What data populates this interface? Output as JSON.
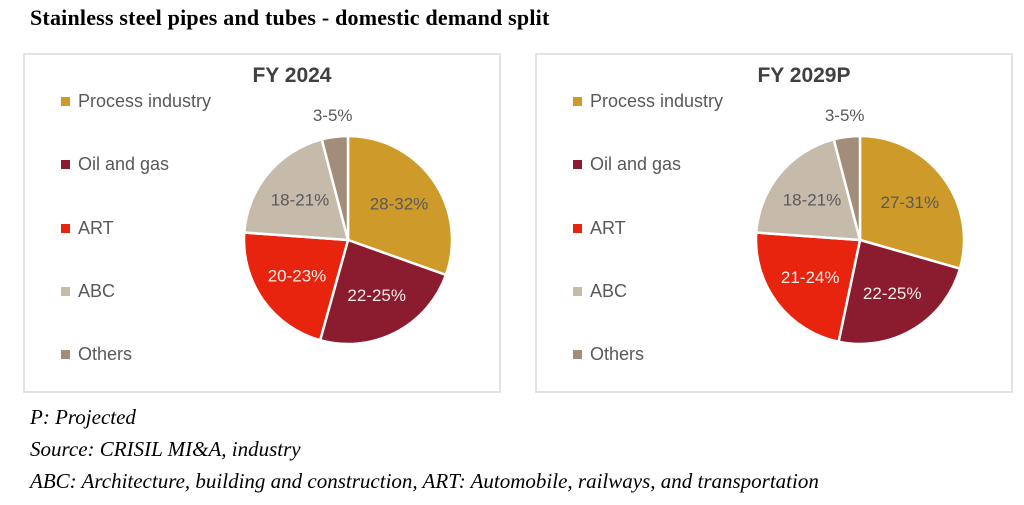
{
  "page": {
    "title": "Stainless steel pipes and tubes - domestic demand split",
    "footnotes": [
      "P: Projected",
      "Source: CRISIL MI&A, industry",
      "ABC: Architecture, building and construction, ART: Automobile, railways, and transportation"
    ]
  },
  "colors": {
    "process_industry": "#CE9B2A",
    "oil_and_gas": "#8B1B2E",
    "art": "#E8230E",
    "abc": "#C6BAAB",
    "others": "#A28D7B",
    "label_dark": "#595959",
    "label_light": "#F2EDE7",
    "chart_title": "#404040",
    "panel_border": "#E4E3E2"
  },
  "chart_data": [
    {
      "type": "pie",
      "title": "FY 2024",
      "legend_position": "left",
      "slices": [
        {
          "name": "Process industry",
          "label": "28-32%",
          "value": 30,
          "color": "#CE9B2A",
          "label_color": "#595959",
          "label_outside": false
        },
        {
          "name": "Oil and gas",
          "label": "22-25%",
          "value": 23.5,
          "color": "#8B1B2E",
          "label_color": "#F2EDE7",
          "label_outside": false
        },
        {
          "name": "ART",
          "label": "20-23%",
          "value": 21.5,
          "color": "#E8230E",
          "label_color": "#F2EDE7",
          "label_outside": false
        },
        {
          "name": "ABC",
          "label": "18-21%",
          "value": 19.5,
          "color": "#C6BAAB",
          "label_color": "#595959",
          "label_outside": false
        },
        {
          "name": "Others",
          "label": "3-5%",
          "value": 4,
          "color": "#A28D7B",
          "label_color": "#595959",
          "label_outside": true
        }
      ]
    },
    {
      "type": "pie",
      "title": "FY 2029P",
      "legend_position": "left",
      "slices": [
        {
          "name": "Process industry",
          "label": "27-31%",
          "value": 29,
          "color": "#CE9B2A",
          "label_color": "#595959",
          "label_outside": false
        },
        {
          "name": "Oil and gas",
          "label": "22-25%",
          "value": 23.5,
          "color": "#8B1B2E",
          "label_color": "#F2EDE7",
          "label_outside": false
        },
        {
          "name": "ART",
          "label": "21-24%",
          "value": 22.5,
          "color": "#E8230E",
          "label_color": "#F2EDE7",
          "label_outside": false
        },
        {
          "name": "ABC",
          "label": "18-21%",
          "value": 19.5,
          "color": "#C6BAAB",
          "label_color": "#595959",
          "label_outside": false
        },
        {
          "name": "Others",
          "label": "3-5%",
          "value": 4,
          "color": "#A28D7B",
          "label_color": "#595959",
          "label_outside": true
        }
      ]
    }
  ]
}
